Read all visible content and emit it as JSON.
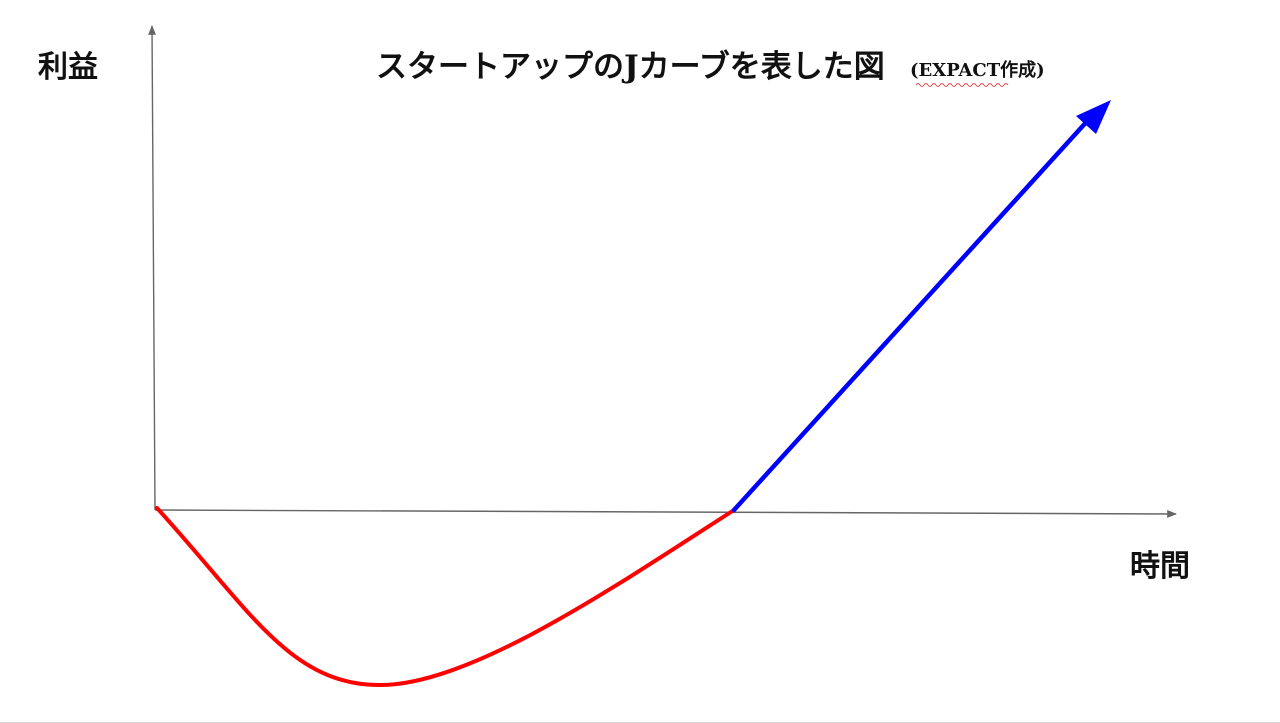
{
  "diagram": {
    "title": "スタートアップのJカーブを表した図",
    "title_note": "(EXPACT作成)",
    "y_axis_label": "利益",
    "x_axis_label": "時間"
  },
  "colors": {
    "axis": "#666666",
    "loss_curve": "#ff0000",
    "growth_arrow": "#0000ff",
    "text": "#111111",
    "spellcheck_underline": "#e05050"
  }
}
